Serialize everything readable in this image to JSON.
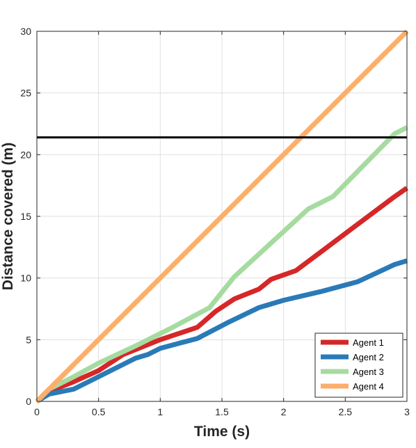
{
  "chart_data": {
    "type": "line",
    "title": "",
    "xlabel": "Time (s)",
    "ylabel": "Distance covered (m)",
    "xlim": [
      0,
      3
    ],
    "ylim": [
      0,
      30
    ],
    "x_ticks": [
      0,
      0.5,
      1,
      1.5,
      2,
      2.5,
      3
    ],
    "x_tick_labels": [
      "0",
      "0.5",
      "1",
      "1.5",
      "2",
      "2.5",
      "3"
    ],
    "y_ticks": [
      0,
      5,
      10,
      15,
      20,
      25,
      30
    ],
    "y_tick_labels": [
      "0",
      "5",
      "10",
      "15",
      "20",
      "25",
      "30"
    ],
    "grid": true,
    "legend_position": "bottom-right",
    "series": [
      {
        "name": "Agent 1",
        "color": "#d62728",
        "x": [
          0,
          0.1,
          0.3,
          0.5,
          0.7,
          0.8,
          1.0,
          1.3,
          1.45,
          1.6,
          1.8,
          1.9,
          2.1,
          2.3,
          2.5,
          2.7,
          2.9,
          3.0
        ],
        "y": [
          0,
          0.8,
          1.6,
          2.5,
          3.8,
          4.2,
          5.0,
          6.0,
          7.3,
          8.3,
          9.1,
          9.9,
          10.6,
          12.1,
          13.6,
          15.1,
          16.6,
          17.3
        ]
      },
      {
        "name": "Agent 2",
        "color": "#2a7ab8",
        "x": [
          0,
          0.1,
          0.3,
          0.5,
          0.8,
          0.9,
          1.0,
          1.3,
          1.55,
          1.8,
          2.0,
          2.3,
          2.6,
          2.9,
          3.0
        ],
        "y": [
          0,
          0.6,
          1.0,
          2.0,
          3.5,
          3.8,
          4.3,
          5.1,
          6.4,
          7.6,
          8.2,
          8.9,
          9.7,
          11.1,
          11.4
        ]
      },
      {
        "name": "Agent 3",
        "color": "#a6dba0",
        "x": [
          0,
          0.1,
          0.3,
          0.5,
          0.8,
          1.1,
          1.4,
          1.6,
          2.2,
          2.4,
          2.9,
          3.0
        ],
        "y": [
          0,
          1.0,
          2.0,
          3.1,
          4.5,
          6.0,
          7.6,
          10.1,
          15.6,
          16.6,
          21.7,
          22.2
        ]
      },
      {
        "name": "Agent 4",
        "color": "#fdae6b",
        "x": [
          0,
          3
        ],
        "y": [
          0,
          30
        ]
      }
    ],
    "reference_line": {
      "y": 21.4,
      "color": "#000000"
    }
  }
}
